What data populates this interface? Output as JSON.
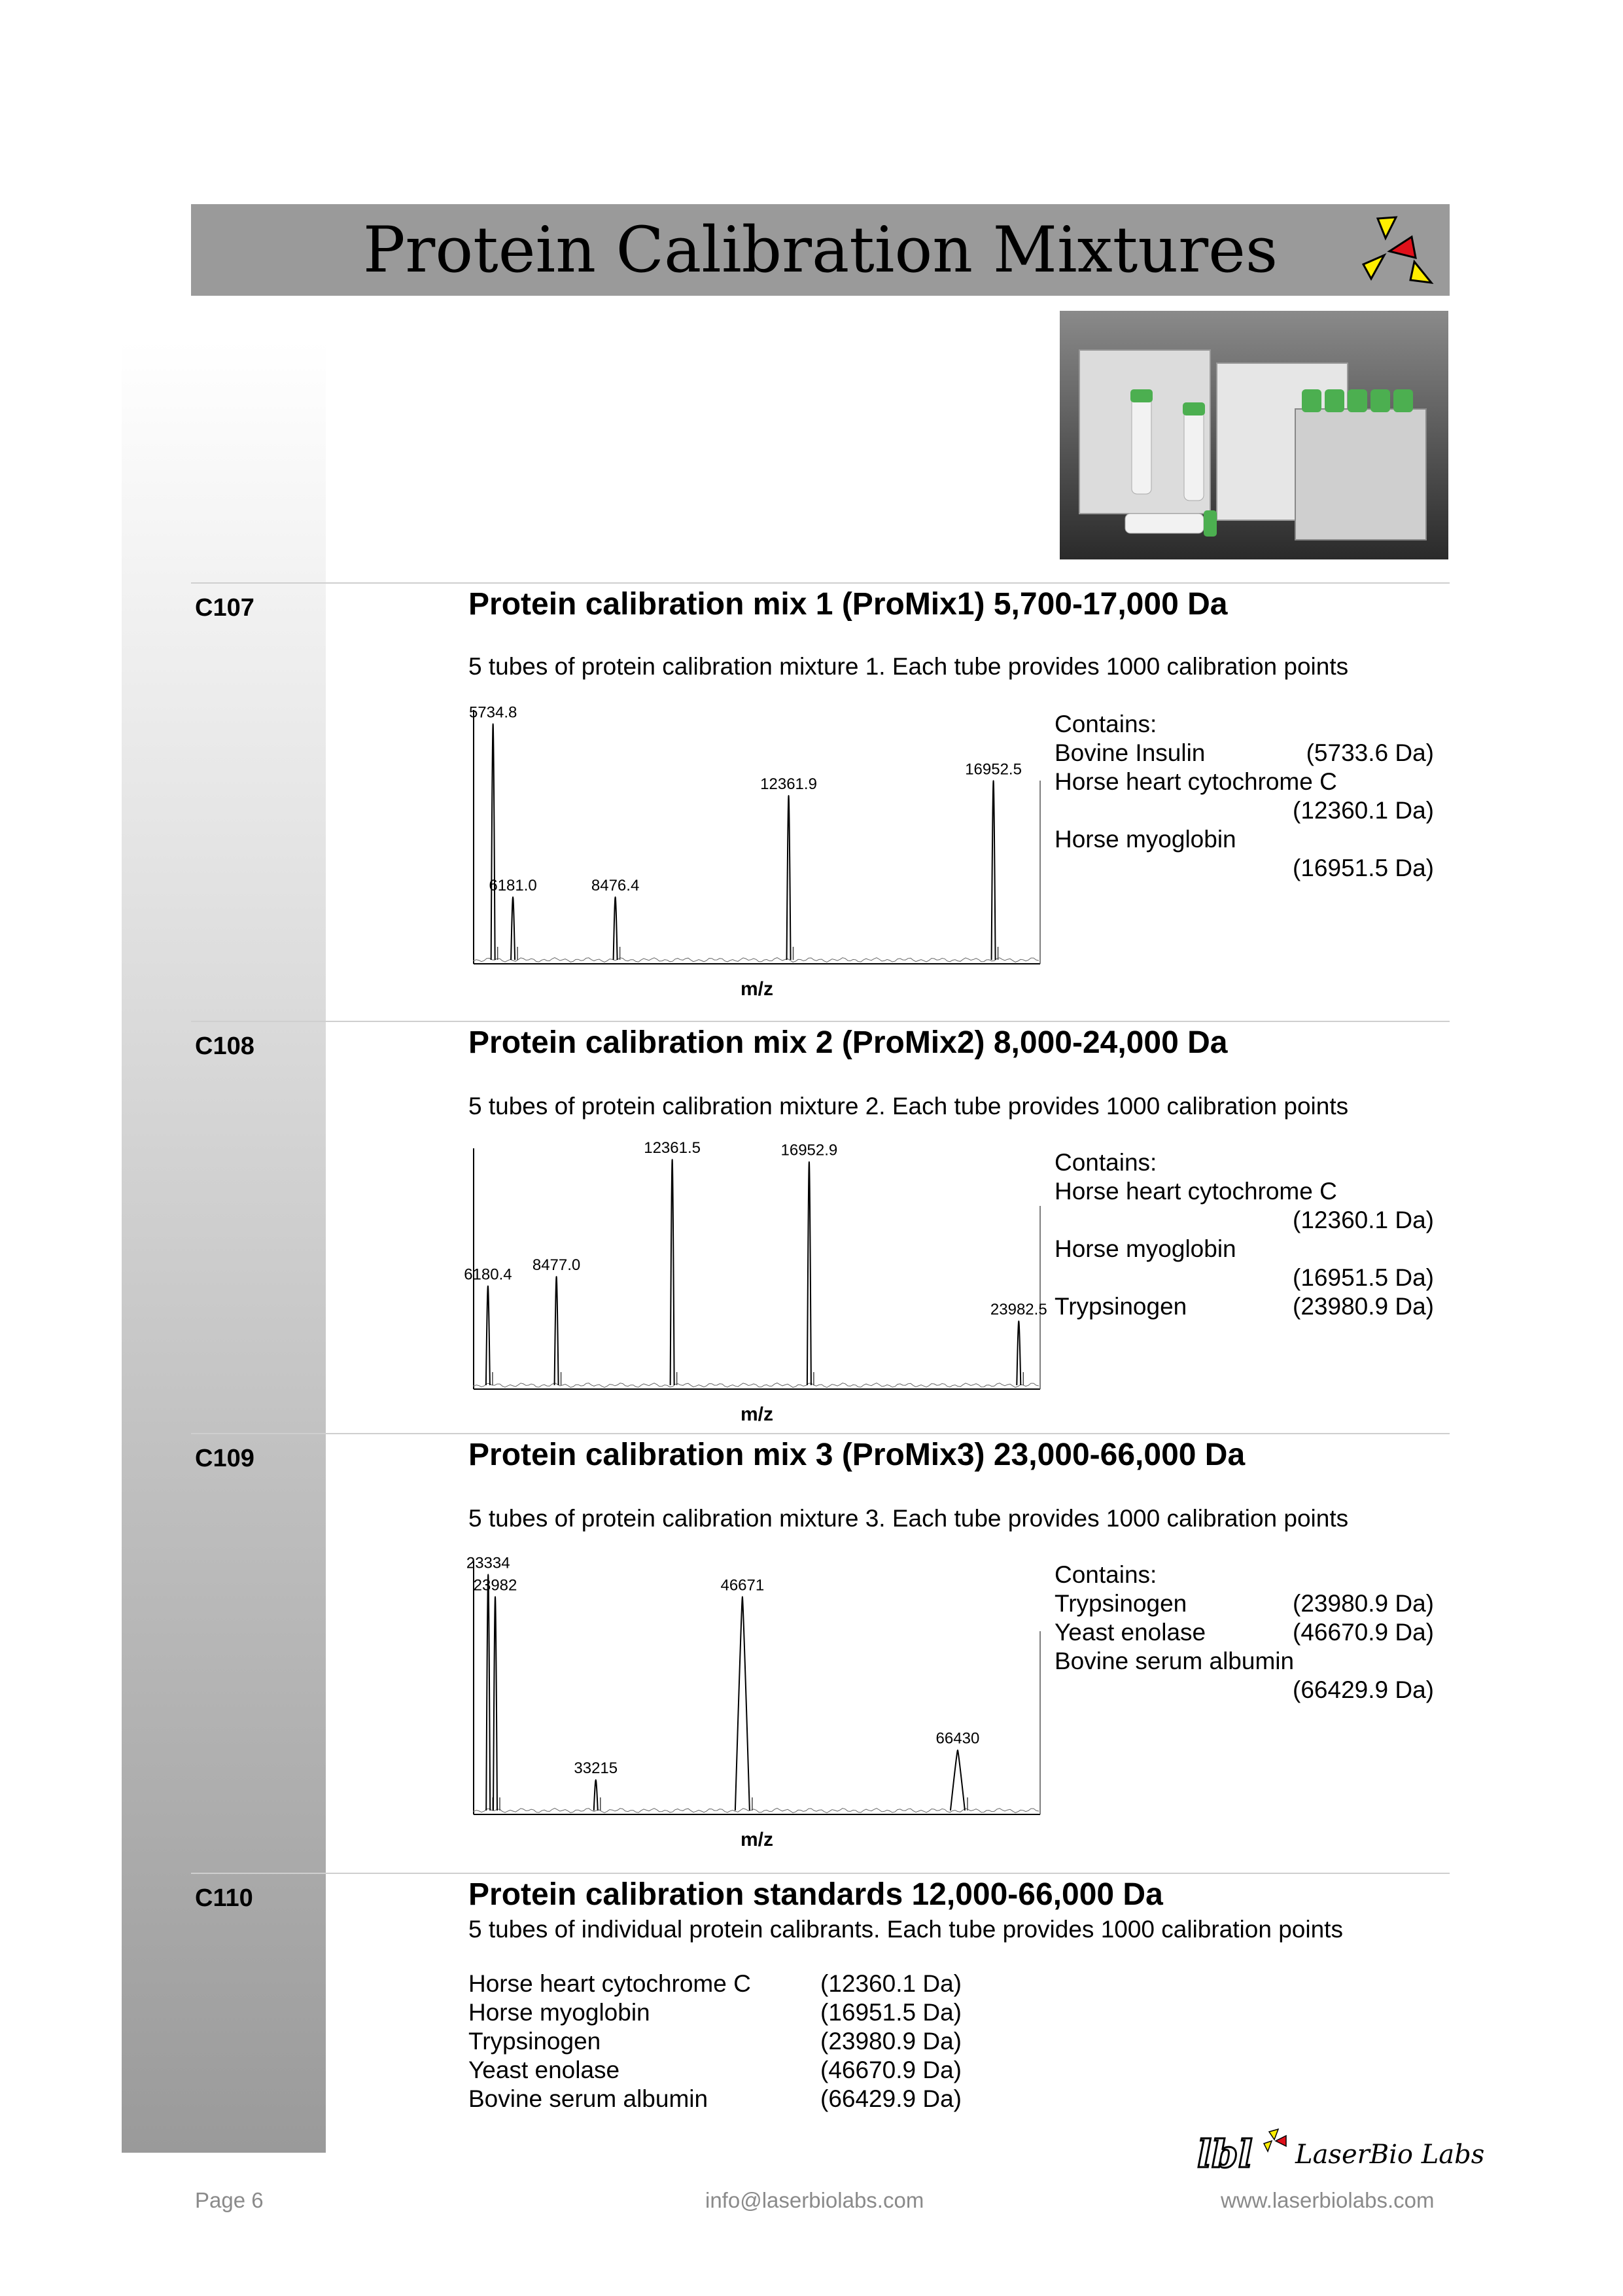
{
  "header": {
    "title": "Protein Calibration Mixtures"
  },
  "products": [
    {
      "code": "C107",
      "heading": "Protein calibration mix 1 (ProMix1) 5,700-17,000 Da",
      "description": "5 tubes of protein calibration mixture 1. Each tube provides 1000 calibration points",
      "spectrum": {
        "xlabel": "m/z",
        "peaks": [
          {
            "mz": 5734.8,
            "label": "5734.8",
            "height": 0.97
          },
          {
            "mz": 6181.0,
            "label": "6181.0",
            "height": 0.27
          },
          {
            "mz": 8476.4,
            "label": "8476.4",
            "height": 0.27
          },
          {
            "mz": 12361.9,
            "label": "12361.9",
            "height": 0.68
          },
          {
            "mz": 16952.5,
            "label": "16952.5",
            "height": 0.74
          }
        ]
      },
      "contains_label": "Contains:",
      "contains": [
        {
          "name": "Bovine Insulin",
          "mass": "(5733.6 Da)"
        },
        {
          "name": "Horse heart cytochrome C",
          "mass": ""
        },
        {
          "name": "",
          "mass": "(12360.1 Da)"
        },
        {
          "name": "Horse myoglobin",
          "mass": ""
        },
        {
          "name": "",
          "mass": "(16951.5 Da)"
        }
      ]
    },
    {
      "code": "C108",
      "heading": "Protein calibration mix 2 (ProMix2) 8,000-24,000 Da",
      "description": "5 tubes of protein calibration mixture 2. Each tube provides 1000 calibration points",
      "spectrum": {
        "xlabel": "m/z",
        "peaks": [
          {
            "mz": 6180.4,
            "label": "6180.4",
            "height": 0.44
          },
          {
            "mz": 8477.0,
            "label": "8477.0",
            "height": 0.48
          },
          {
            "mz": 12361.5,
            "label": "12361.5",
            "height": 0.98
          },
          {
            "mz": 16952.9,
            "label": "16952.9",
            "height": 0.97
          },
          {
            "mz": 23982.5,
            "label": "23982.5",
            "height": 0.29
          }
        ]
      },
      "contains_label": "Contains:",
      "contains": [
        {
          "name": "Horse heart cytochrome C",
          "mass": ""
        },
        {
          "name": "",
          "mass": "(12360.1 Da)"
        },
        {
          "name": "Horse myoglobin",
          "mass": ""
        },
        {
          "name": "",
          "mass": "(16951.5 Da)"
        },
        {
          "name": "Trypsinogen",
          "mass": "(23980.9 Da)"
        }
      ]
    },
    {
      "code": "C109",
      "heading": "Protein calibration mix 3 (ProMix3) 23,000-66,000 Da",
      "description": "5 tubes of protein calibration mixture 3. Each tube provides 1000 calibration points",
      "spectrum": {
        "xlabel": "m/z",
        "peaks": [
          {
            "mz": 23334,
            "label": "23334",
            "height": 0.97
          },
          {
            "mz": 23982,
            "label": "23982",
            "height": 0.88
          },
          {
            "mz": 33215,
            "label": "33215",
            "height": 0.14
          },
          {
            "mz": 46671,
            "label": "46671",
            "height": 0.88
          },
          {
            "mz": 66430,
            "label": "66430",
            "height": 0.26
          }
        ]
      },
      "contains_label": "Contains:",
      "contains": [
        {
          "name": "Trypsinogen",
          "mass": "(23980.9 Da)"
        },
        {
          "name": "Yeast enolase",
          "mass": "(46670.9 Da)"
        },
        {
          "name": "Bovine serum albumin",
          "mass": ""
        },
        {
          "name": "",
          "mass": "(66429.9 Da)"
        }
      ]
    },
    {
      "code": "C110",
      "heading": "Protein calibration standards 12,000-66,000 Da",
      "description": "5 tubes of individual protein calibrants. Each tube provides 1000 calibration points",
      "standards": [
        {
          "name": "Horse heart cytochrome C",
          "mass": "(12360.1 Da)"
        },
        {
          "name": "Horse myoglobin",
          "mass": "(16951.5 Da)"
        },
        {
          "name": "Trypsinogen",
          "mass": "(23980.9 Da)"
        },
        {
          "name": "Yeast enolase",
          "mass": "(46670.9 Da)"
        },
        {
          "name": "Bovine serum albumin",
          "mass": "(66429.9 Da)"
        }
      ]
    }
  ],
  "footer": {
    "page": "Page 6",
    "email": "info@laserbiolabs.com",
    "website": "www.laserbiolabs.com",
    "logo_text": "LaserBio Labs"
  },
  "colors": {
    "title_bar": "#9a9a9a",
    "accent_red": "#e0101a",
    "accent_yellow": "#ffee00",
    "footer_gray": "#8a8a8a"
  }
}
